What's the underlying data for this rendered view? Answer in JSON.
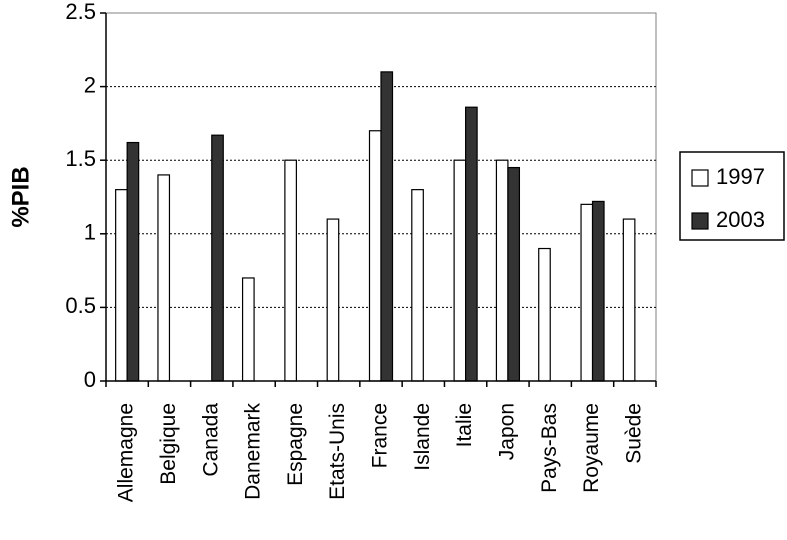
{
  "chart_data": {
    "type": "bar",
    "ylabel": "%PIB",
    "xlabel": "",
    "ylim": [
      0,
      2.5
    ],
    "yticks": [
      "0",
      "0.5",
      "1",
      "1.5",
      "2",
      "2.5"
    ],
    "grid": true,
    "legend_position": "right",
    "categories": [
      "Allemagne",
      "Belgique",
      "Canada",
      "Danemark",
      "Espagne",
      "Etats-Unis",
      "France",
      "Islande",
      "Italie",
      "Japon",
      "Pays-Bas",
      "Royaume",
      "Suède"
    ],
    "series": [
      {
        "name": "1997",
        "color": "#ffffff",
        "values": [
          1.3,
          1.4,
          null,
          0.7,
          1.5,
          1.1,
          1.7,
          1.3,
          1.5,
          1.5,
          0.9,
          1.2,
          1.1
        ]
      },
      {
        "name": "2003",
        "color": "#333333",
        "values": [
          1.62,
          null,
          1.67,
          null,
          null,
          null,
          2.1,
          null,
          1.86,
          1.45,
          null,
          1.22,
          null
        ]
      }
    ]
  }
}
